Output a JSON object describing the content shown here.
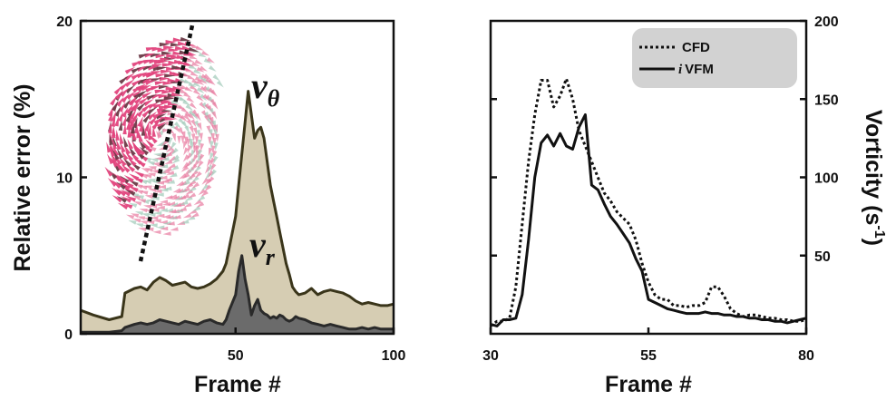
{
  "chart_data": [
    {
      "type": "area",
      "xlabel": "Frame #",
      "ylabel": "Relative error (%)",
      "xlim": [
        1,
        100
      ],
      "ylim": [
        0,
        20
      ],
      "xticks": [
        "50",
        "100"
      ],
      "yticks": [
        "0",
        "10",
        "20"
      ],
      "annotations": [
        {
          "base": "v",
          "sub": "θ"
        },
        {
          "base": "v",
          "sub": "r"
        }
      ],
      "colors": {
        "v_theta_fill": "#d6cdb3",
        "v_theta_line": "#3a351a",
        "v_r_fill": "#6b6b6b",
        "v_r_line": "#2a2a2a"
      },
      "x": [
        1,
        5,
        10,
        14,
        15,
        18,
        20,
        22,
        24,
        26,
        28,
        30,
        32,
        34,
        36,
        38,
        40,
        42,
        44,
        46,
        47,
        48,
        50,
        51,
        52,
        53,
        54,
        55,
        56,
        57,
        58,
        59,
        60,
        61,
        62,
        63,
        64,
        65,
        66,
        67,
        68,
        69,
        70,
        72,
        74,
        76,
        78,
        80,
        82,
        84,
        86,
        88,
        90,
        92,
        94,
        96,
        98,
        100
      ],
      "series": [
        {
          "key": "v_theta",
          "values": [
            1.5,
            1.2,
            0.9,
            1.1,
            2.6,
            2.9,
            3.0,
            2.8,
            3.3,
            3.6,
            3.4,
            3.1,
            3.2,
            3.3,
            3.0,
            2.9,
            3.0,
            3.2,
            3.5,
            4.0,
            4.5,
            5.5,
            7.5,
            9.5,
            11.5,
            13.5,
            15.5,
            14.0,
            12.5,
            13.0,
            13.2,
            12.5,
            11.0,
            9.5,
            8.5,
            7.5,
            6.5,
            5.5,
            4.5,
            3.8,
            3.0,
            2.7,
            2.5,
            2.6,
            2.9,
            2.5,
            2.7,
            2.8,
            2.7,
            2.6,
            2.4,
            2.1,
            1.9,
            2.0,
            1.9,
            1.8,
            1.8,
            1.9
          ]
        },
        {
          "key": "v_r",
          "values": [
            0.1,
            0.1,
            0.1,
            0.2,
            0.4,
            0.6,
            0.7,
            0.6,
            0.7,
            0.9,
            0.8,
            0.7,
            0.6,
            0.8,
            0.7,
            0.6,
            0.8,
            0.9,
            0.7,
            0.6,
            0.9,
            1.5,
            2.5,
            4.0,
            5.0,
            3.5,
            2.5,
            1.2,
            1.8,
            2.2,
            1.5,
            1.3,
            1.2,
            1.0,
            1.1,
            1.0,
            1.2,
            1.1,
            0.9,
            0.8,
            0.9,
            1.1,
            1.0,
            0.9,
            0.7,
            0.6,
            0.5,
            0.6,
            0.5,
            0.4,
            0.3,
            0.3,
            0.4,
            0.3,
            0.4,
            0.3,
            0.3,
            0.3
          ]
        }
      ]
    },
    {
      "type": "line",
      "xlabel": "Frame #",
      "ylabel": "Vorticity (s-1)",
      "xlim": [
        30,
        80
      ],
      "ylim": [
        0,
        200
      ],
      "xticks": [
        "30",
        "55",
        "80"
      ],
      "yticks": [
        "50",
        "100",
        "150",
        "200"
      ],
      "legend_position": "top-right",
      "series": [
        {
          "name": "CFD",
          "style": "dotted",
          "x": [
            30,
            31,
            32,
            33,
            34,
            35,
            36,
            37,
            38,
            39,
            40,
            41,
            42,
            43,
            44,
            45,
            46,
            47,
            48,
            49,
            50,
            51,
            52,
            53,
            54,
            55,
            56,
            57,
            58,
            59,
            60,
            61,
            62,
            63,
            64,
            65,
            66,
            67,
            68,
            69,
            70,
            71,
            72,
            73,
            74,
            75,
            76,
            77,
            78,
            79,
            80
          ],
          "values": [
            5,
            8,
            8,
            10,
            30,
            70,
            110,
            140,
            162,
            162,
            145,
            152,
            163,
            150,
            130,
            120,
            110,
            100,
            90,
            85,
            78,
            74,
            70,
            60,
            45,
            33,
            25,
            22,
            22,
            18,
            18,
            17,
            18,
            18,
            20,
            30,
            30,
            24,
            16,
            13,
            11,
            12,
            12,
            11,
            10,
            10,
            9,
            9,
            8,
            8,
            9
          ]
        },
        {
          "name": "iVFM",
          "style": "solid",
          "x": [
            30,
            31,
            32,
            33,
            34,
            35,
            36,
            37,
            38,
            39,
            40,
            41,
            42,
            43,
            44,
            45,
            46,
            47,
            48,
            49,
            50,
            51,
            52,
            53,
            54,
            55,
            56,
            57,
            58,
            59,
            60,
            61,
            62,
            63,
            64,
            65,
            66,
            67,
            68,
            69,
            70,
            71,
            72,
            73,
            74,
            75,
            76,
            77,
            78,
            79,
            80
          ],
          "values": [
            6,
            5,
            9,
            9,
            10,
            25,
            60,
            100,
            122,
            127,
            120,
            128,
            120,
            118,
            132,
            140,
            95,
            92,
            83,
            75,
            70,
            64,
            58,
            48,
            40,
            22,
            20,
            18,
            16,
            15,
            14,
            13,
            13,
            13,
            14,
            13,
            13,
            12,
            12,
            11,
            11,
            10,
            10,
            9,
            9,
            8,
            8,
            7,
            8,
            9,
            10
          ]
        }
      ]
    }
  ],
  "axis_label_parts": {
    "vorticity_main": "Vorticity (s",
    "vorticity_sup": "-1",
    "vorticity_close": ")"
  },
  "legend": {
    "cfd": "CFD",
    "ivfm_prefix": "i",
    "ivfm_rest": "VFM"
  }
}
